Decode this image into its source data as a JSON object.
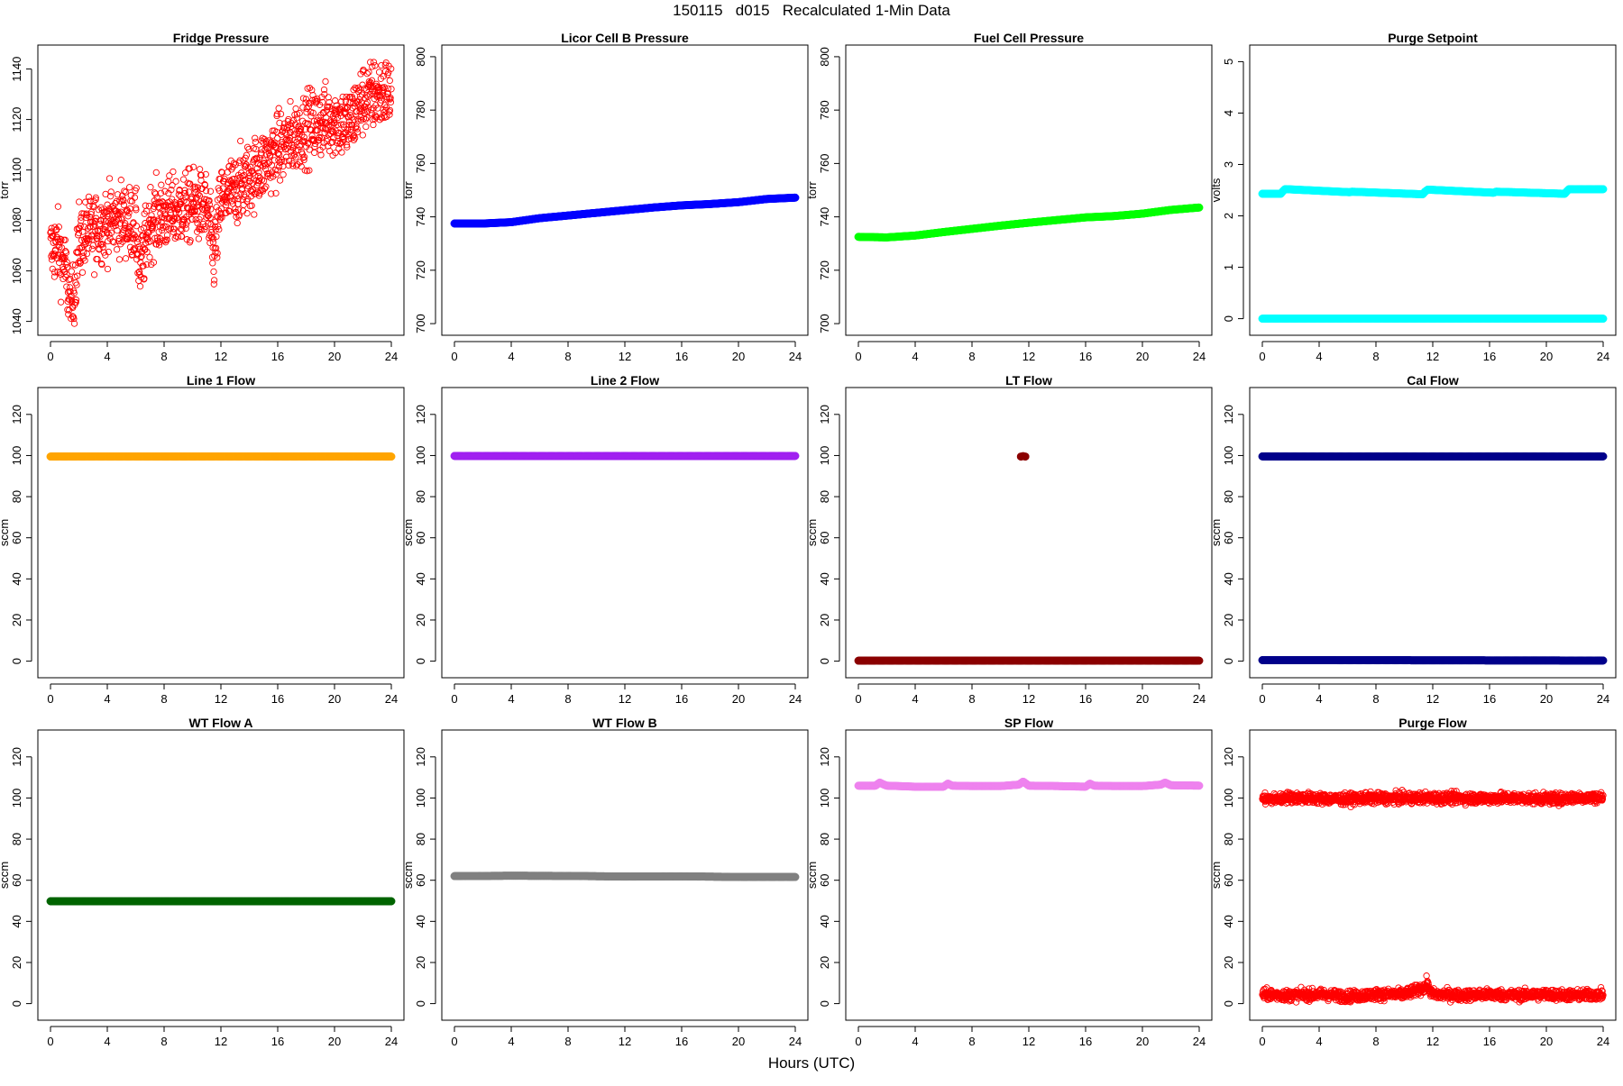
{
  "page": {
    "title": "150115   d015   Recalculated 1-Min Data",
    "xlabel": "Hours (UTC)"
  },
  "chart_data": [
    {
      "type": "scatter",
      "title": "Fridge Pressure",
      "xlabel": "",
      "ylabel": "torr",
      "xlim": [
        0,
        24
      ],
      "ylim": [
        1037,
        1147
      ],
      "xticks": [
        0,
        4,
        8,
        12,
        16,
        20,
        24
      ],
      "yticks": [
        1040,
        1060,
        1080,
        1100,
        1120,
        1140
      ],
      "color": "#ff0000",
      "marker": "open-circle",
      "series": [
        {
          "x": [
            0,
            0.5,
            1,
            1.3,
            1.5,
            2,
            3,
            4,
            5,
            6,
            6.3,
            7,
            8,
            9,
            10,
            11,
            11.5,
            12,
            13,
            14,
            15,
            16,
            17,
            18,
            19,
            20,
            21,
            22,
            23,
            24
          ],
          "y": [
            1068,
            1070,
            1062,
            1050,
            1043,
            1072,
            1076,
            1079,
            1081,
            1078,
            1060,
            1080,
            1082,
            1084,
            1086,
            1085,
            1065,
            1088,
            1092,
            1097,
            1102,
            1108,
            1112,
            1117,
            1119,
            1120,
            1118,
            1128,
            1130,
            1131
          ]
        }
      ]
    },
    {
      "type": "scatter",
      "title": "Licor Cell B Pressure",
      "xlabel": "",
      "ylabel": "torr",
      "xlim": [
        0,
        24
      ],
      "ylim": [
        698,
        802
      ],
      "xticks": [
        0,
        4,
        8,
        12,
        16,
        20,
        24
      ],
      "yticks": [
        700,
        720,
        740,
        760,
        780,
        800
      ],
      "color": "#0000ff",
      "marker": "filled-circle",
      "series": [
        {
          "x": [
            0,
            2,
            4,
            6,
            8,
            10,
            12,
            14,
            16,
            18,
            20,
            22,
            24
          ],
          "y": [
            737.5,
            737.5,
            738,
            739.5,
            740.5,
            741.5,
            742.5,
            743.5,
            744.3,
            744.8,
            745.5,
            746.7,
            747.2
          ]
        }
      ]
    },
    {
      "type": "scatter",
      "title": "Fuel Cell Pressure",
      "xlabel": "",
      "ylabel": "torr",
      "xlim": [
        0,
        24
      ],
      "ylim": [
        698,
        802
      ],
      "xticks": [
        0,
        4,
        8,
        12,
        16,
        20,
        24
      ],
      "yticks": [
        700,
        720,
        740,
        760,
        780,
        800
      ],
      "color": "#00ff00",
      "marker": "filled-circle",
      "series": [
        {
          "x": [
            0,
            2,
            4,
            6,
            8,
            10,
            12,
            14,
            16,
            18,
            20,
            22,
            24
          ],
          "y": [
            732.5,
            732.3,
            733,
            734.3,
            735.5,
            736.7,
            737.8,
            738.8,
            739.8,
            740.3,
            741.2,
            742.6,
            743.5
          ]
        }
      ]
    },
    {
      "type": "scatter",
      "title": "Purge Setpoint",
      "xlabel": "",
      "ylabel": "volts",
      "xlim": [
        0,
        24
      ],
      "ylim": [
        -0.2,
        5.2
      ],
      "xticks": [
        0,
        4,
        8,
        12,
        16,
        20,
        24
      ],
      "yticks": [
        0,
        1,
        2,
        3,
        4,
        5
      ],
      "color": "#00ffff",
      "marker": "filled-circle",
      "series": [
        {
          "x": [
            0,
            24
          ],
          "y": [
            0,
            0
          ]
        },
        {
          "x": [
            1.3,
            1.45,
            1.6,
            6.15,
            6.3,
            11.3,
            11.45,
            11.65,
            16.3,
            16.45,
            21.3,
            21.45,
            21.6
          ],
          "y": [
            2.43,
            2.48,
            2.52,
            2.46,
            2.47,
            2.42,
            2.47,
            2.51,
            2.45,
            2.47,
            2.43,
            2.48,
            2.52
          ]
        }
      ]
    },
    {
      "type": "scatter",
      "title": "Line 1 Flow",
      "xlabel": "",
      "ylabel": "sccm",
      "xlim": [
        0,
        24
      ],
      "ylim": [
        -5,
        130
      ],
      "xticks": [
        0,
        4,
        8,
        12,
        16,
        20,
        24
      ],
      "yticks": [
        0,
        20,
        40,
        60,
        80,
        100,
        120
      ],
      "color": "#ffa500",
      "marker": "filled-circle",
      "series": [
        {
          "x": [
            0,
            24
          ],
          "y": [
            99.5,
            99.5
          ]
        }
      ]
    },
    {
      "type": "scatter",
      "title": "Line 2 Flow",
      "xlabel": "",
      "ylabel": "sccm",
      "xlim": [
        0,
        24
      ],
      "ylim": [
        -5,
        130
      ],
      "xticks": [
        0,
        4,
        8,
        12,
        16,
        20,
        24
      ],
      "yticks": [
        0,
        20,
        40,
        60,
        80,
        100,
        120
      ],
      "color": "#a020f0",
      "marker": "filled-circle",
      "series": [
        {
          "x": [
            0,
            24
          ],
          "y": [
            99.8,
            99.8
          ]
        }
      ]
    },
    {
      "type": "scatter",
      "title": "LT Flow",
      "xlabel": "",
      "ylabel": "sccm",
      "xlim": [
        0,
        24
      ],
      "ylim": [
        -5,
        130
      ],
      "xticks": [
        0,
        4,
        8,
        12,
        16,
        20,
        24
      ],
      "yticks": [
        0,
        20,
        40,
        60,
        80,
        100,
        120
      ],
      "color": "#8b0000",
      "marker": "filled-circle",
      "series": [
        {
          "x": [
            0,
            24
          ],
          "y": [
            0.2,
            0.2
          ]
        },
        {
          "x": [
            11.45,
            11.6,
            11.75
          ],
          "y": [
            99.5,
            99.7,
            99.5
          ]
        }
      ]
    },
    {
      "type": "scatter",
      "title": "Cal Flow",
      "xlabel": "",
      "ylabel": "sccm",
      "xlim": [
        0,
        24
      ],
      "ylim": [
        -5,
        130
      ],
      "xticks": [
        0,
        4,
        8,
        12,
        16,
        20,
        24
      ],
      "yticks": [
        0,
        20,
        40,
        60,
        80,
        100,
        120
      ],
      "color": "#00008b",
      "marker": "filled-circle",
      "series": [
        {
          "x": [
            0,
            24
          ],
          "y": [
            0.5,
            0.3
          ]
        },
        {
          "x": [
            1.3,
            1.45,
            1.6,
            6.15,
            6.3,
            6.45,
            11.3,
            11.45,
            11.65,
            16.3,
            16.45,
            21.3,
            21.45,
            21.6
          ],
          "y": [
            99.6,
            99.6,
            99.6,
            99.6,
            99.6,
            99.6,
            99.6,
            99.6,
            99.6,
            99.6,
            99.6,
            99.6,
            99.6,
            99.6
          ]
        }
      ]
    },
    {
      "type": "scatter",
      "title": "WT Flow A",
      "xlabel": "",
      "ylabel": "sccm",
      "xlim": [
        0,
        24
      ],
      "ylim": [
        -5,
        130
      ],
      "xticks": [
        0,
        4,
        8,
        12,
        16,
        20,
        24
      ],
      "yticks": [
        0,
        20,
        40,
        60,
        80,
        100,
        120
      ],
      "color": "#006400",
      "marker": "filled-circle",
      "series": [
        {
          "x": [
            0,
            24
          ],
          "y": [
            49.8,
            49.8
          ]
        }
      ]
    },
    {
      "type": "scatter",
      "title": "WT Flow B",
      "xlabel": "",
      "ylabel": "sccm",
      "xlim": [
        0,
        24
      ],
      "ylim": [
        -5,
        130
      ],
      "xticks": [
        0,
        4,
        8,
        12,
        16,
        20,
        24
      ],
      "yticks": [
        0,
        20,
        40,
        60,
        80,
        100,
        120
      ],
      "color": "#808080",
      "marker": "filled-circle",
      "series": [
        {
          "x": [
            0,
            4,
            8,
            12,
            16,
            20,
            24
          ],
          "y": [
            62,
            62.2,
            62.1,
            61.8,
            61.9,
            61.6,
            61.6
          ]
        }
      ]
    },
    {
      "type": "scatter",
      "title": "SP Flow",
      "xlabel": "",
      "ylabel": "sccm",
      "xlim": [
        0,
        24
      ],
      "ylim": [
        -5,
        130
      ],
      "xticks": [
        0,
        4,
        8,
        12,
        16,
        20,
        24
      ],
      "yticks": [
        0,
        20,
        40,
        60,
        80,
        100,
        120
      ],
      "color": "#ee82ee",
      "marker": "filled-circle",
      "series": [
        {
          "x": [
            0,
            1.2,
            1.5,
            1.8,
            2,
            4,
            6,
            6.3,
            6.6,
            8,
            10,
            11.3,
            11.6,
            11.9,
            12,
            14,
            16,
            16.3,
            16.6,
            18,
            20,
            21.3,
            21.6,
            22,
            24
          ],
          "y": [
            106,
            106,
            107.5,
            106.5,
            106,
            105.5,
            105.5,
            107,
            106,
            105.8,
            105.8,
            106.5,
            108,
            106.5,
            106,
            105.8,
            105.5,
            107,
            106,
            105.8,
            105.8,
            106.5,
            107.5,
            106.2,
            106
          ]
        }
      ]
    },
    {
      "type": "scatter",
      "title": "Purge Flow",
      "xlabel": "",
      "ylabel": "sccm",
      "xlim": [
        0,
        24
      ],
      "ylim": [
        -5,
        130
      ],
      "xticks": [
        0,
        4,
        8,
        12,
        16,
        20,
        24
      ],
      "yticks": [
        0,
        20,
        40,
        60,
        80,
        100,
        120
      ],
      "color": "#ff0000",
      "marker": "open-circle",
      "series": [
        {
          "x": [
            0,
            2,
            4,
            6,
            8,
            10,
            11.5,
            11.6,
            11.7,
            12,
            14,
            16,
            18,
            20,
            22,
            24
          ],
          "y": [
            4.5,
            4,
            4.5,
            3.5,
            4.5,
            4.5,
            8,
            11,
            7,
            4.5,
            4,
            4.5,
            4,
            4.5,
            4,
            4.5
          ]
        },
        {
          "x": [
            1.3,
            1.45,
            1.6,
            6.15,
            6.3,
            11.3,
            11.45,
            11.65,
            16.3,
            16.45,
            21.3,
            21.45,
            21.6
          ],
          "y": [
            99.5,
            100,
            100.3,
            99.3,
            99.8,
            100,
            100.3,
            100,
            99.8,
            100,
            99.5,
            100,
            100.2
          ]
        }
      ]
    }
  ]
}
